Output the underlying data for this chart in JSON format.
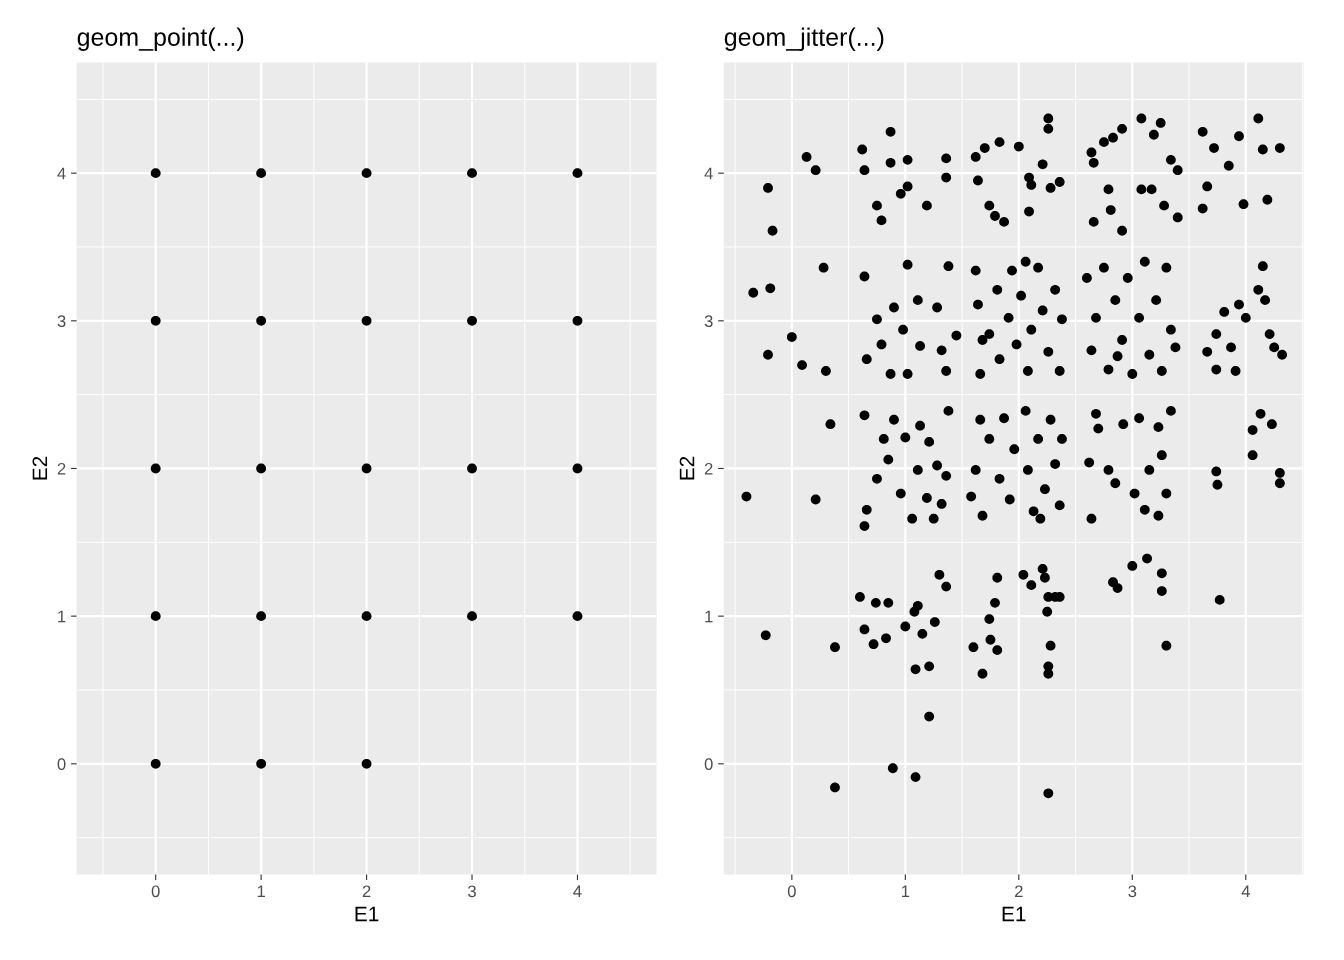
{
  "chart_data": [
    {
      "type": "scatter",
      "title": "geom_point(...)",
      "xlabel": "E1",
      "ylabel": "E2",
      "xlim": [
        -0.75,
        4.75
      ],
      "ylim": [
        -0.75,
        4.75
      ],
      "xticks": [
        0,
        1,
        2,
        3,
        4
      ],
      "yticks": [
        0,
        1,
        2,
        3,
        4
      ],
      "grid": true,
      "marker": "circle",
      "series": [
        {
          "color": "#000000",
          "x": [
            0,
            1,
            2,
            0,
            1,
            2,
            3,
            4,
            0,
            1,
            2,
            3,
            4,
            0,
            1,
            2,
            3,
            4,
            0,
            1,
            2,
            3,
            4
          ],
          "values": [
            0,
            0,
            0,
            1,
            1,
            1,
            1,
            1,
            2,
            2,
            2,
            2,
            2,
            3,
            3,
            3,
            3,
            3,
            4,
            4,
            4,
            4,
            4
          ]
        }
      ]
    },
    {
      "type": "scatter",
      "title": "geom_jitter(...)",
      "xlabel": "E1",
      "ylabel": "E2",
      "xlim": [
        -0.6,
        4.51
      ],
      "ylim": [
        -0.75,
        4.75
      ],
      "xticks": [
        0,
        1,
        2,
        3,
        4
      ],
      "yticks": [
        0,
        1,
        2,
        3,
        4
      ],
      "grid": true,
      "marker": "circle",
      "series": [
        {
          "color": "#000000",
          "x": [
            -0.17,
            -0.21,
            0.13,
            0.21,
            0.62,
            0.64,
            0.87,
            0.87,
            1.02,
            0.75,
            0.79,
            0.96,
            1.02,
            1.19,
            1.36,
            1.36,
            1.62,
            1.64,
            1.7,
            1.83,
            1.74,
            1.79,
            1.87,
            2.0,
            2.09,
            2.09,
            2.11,
            2.21,
            2.26,
            2.26,
            2.28,
            2.36,
            2.66,
            2.64,
            2.66,
            2.75,
            2.79,
            2.81,
            2.83,
            2.91,
            2.91,
            3.08,
            3.08,
            3.17,
            3.19,
            3.25,
            3.28,
            3.34,
            3.4,
            3.4,
            3.62,
            3.66,
            3.62,
            3.72,
            3.85,
            3.94,
            3.98,
            4.11,
            4.15,
            4.19,
            4.3,
            -0.34,
            -0.19,
            -0.21,
            0,
            0.09,
            0.28,
            0.3,
            0.64,
            0.66,
            0.75,
            0.79,
            0.9,
            0.87,
            0.98,
            1.02,
            1.02,
            1.11,
            1.13,
            1.28,
            1.32,
            1.36,
            1.38,
            1.45,
            1.62,
            1.64,
            1.66,
            1.74,
            1.81,
            1.83,
            1.91,
            1.94,
            1.98,
            2.02,
            2.08,
            2.11,
            2.17,
            2.21,
            2.26,
            2.32,
            2.36,
            2.38,
            1.68,
            2.06,
            2.6,
            2.64,
            2.68,
            2.75,
            2.79,
            2.85,
            2.91,
            2.96,
            3.0,
            3.06,
            3.11,
            3.15,
            3.21,
            3.26,
            3.3,
            3.34,
            3.38,
            2.87,
            3.66,
            3.74,
            3.81,
            3.87,
            3.91,
            3.94,
            4.0,
            4.11,
            4.15,
            4.17,
            4.21,
            4.25,
            4.32,
            3.74,
            -0.4,
            0.21,
            0.34,
            0.64,
            0.66,
            0.64,
            0.75,
            0.81,
            0.85,
            0.9,
            0.96,
            1.0,
            1.06,
            1.11,
            1.13,
            1.19,
            1.21,
            1.25,
            1.28,
            1.32,
            1.38,
            1.36,
            1.58,
            1.62,
            1.66,
            1.68,
            1.74,
            1.83,
            1.87,
            1.92,
            1.96,
            2.06,
            2.08,
            2.13,
            2.17,
            2.23,
            2.28,
            2.32,
            2.36,
            2.38,
            2.19,
            2.62,
            2.64,
            2.68,
            2.7,
            2.79,
            2.85,
            2.92,
            3.02,
            3.06,
            3.11,
            3.15,
            3.23,
            3.26,
            3.3,
            3.34,
            3.23,
            3.74,
            3.75,
            4.06,
            4.06,
            4.13,
            4.23,
            4.3,
            4.3,
            -0.23,
            0.38,
            0.6,
            0.64,
            0.74,
            0.72,
            0.83,
            0.85,
            1.0,
            1.08,
            1.11,
            1.09,
            1.15,
            1.21,
            1.26,
            1.3,
            1.36,
            1.21,
            1.6,
            1.68,
            1.74,
            1.75,
            1.79,
            1.81,
            1.81,
            2.04,
            2.11,
            2.21,
            2.23,
            2.25,
            2.26,
            2.26,
            2.26,
            2.28,
            2.32,
            2.36,
            2.83,
            2.87,
            3.0,
            3.13,
            3.26,
            3.26,
            3.3,
            3.77,
            0.38,
            0.89,
            1.09,
            2.26
          ],
          "values": [
            3.61,
            3.9,
            4.11,
            4.02,
            4.16,
            4.02,
            4.28,
            4.07,
            4.09,
            3.78,
            3.68,
            3.86,
            3.91,
            3.78,
            4.1,
            3.97,
            4.11,
            3.95,
            4.17,
            4.21,
            3.78,
            3.71,
            3.67,
            4.18,
            3.97,
            3.74,
            3.92,
            4.06,
            4.37,
            4.3,
            3.9,
            3.94,
            4.07,
            4.14,
            3.67,
            4.21,
            3.89,
            3.75,
            4.24,
            4.3,
            3.61,
            4.37,
            3.89,
            3.89,
            4.26,
            4.34,
            3.78,
            4.09,
            4.02,
            3.7,
            4.28,
            3.91,
            3.76,
            4.17,
            4.05,
            4.25,
            3.79,
            4.37,
            4.16,
            3.82,
            4.17,
            3.19,
            3.22,
            2.77,
            2.89,
            2.7,
            3.36,
            2.66,
            3.3,
            2.74,
            3.01,
            2.84,
            3.09,
            2.64,
            2.94,
            3.38,
            2.64,
            3.14,
            2.83,
            3.09,
            2.8,
            2.66,
            3.37,
            2.9,
            3.34,
            3.11,
            2.64,
            2.91,
            3.21,
            2.74,
            3.02,
            3.34,
            2.84,
            3.17,
            2.66,
            2.94,
            3.36,
            3.07,
            2.79,
            3.21,
            2.66,
            3.01,
            2.87,
            3.4,
            3.29,
            2.8,
            3.02,
            3.36,
            2.67,
            3.14,
            2.87,
            3.29,
            2.64,
            3.02,
            3.4,
            2.77,
            3.14,
            2.66,
            3.36,
            2.94,
            2.82,
            2.76,
            2.79,
            2.91,
            3.06,
            2.82,
            2.66,
            3.11,
            3.02,
            3.21,
            3.37,
            3.14,
            2.91,
            2.82,
            2.77,
            2.67,
            1.81,
            1.79,
            2.3,
            2.36,
            1.72,
            1.61,
            1.93,
            2.2,
            2.06,
            2.33,
            1.83,
            2.21,
            1.66,
            1.99,
            2.29,
            1.8,
            2.18,
            1.66,
            2.02,
            1.76,
            2.39,
            1.95,
            1.81,
            1.99,
            2.33,
            1.68,
            2.2,
            1.93,
            2.34,
            1.79,
            2.13,
            2.39,
            1.99,
            1.71,
            2.2,
            1.86,
            2.33,
            2.03,
            1.75,
            2.2,
            1.66,
            2.04,
            1.66,
            2.37,
            2.27,
            1.99,
            1.9,
            2.3,
            1.83,
            2.34,
            1.72,
            1.99,
            2.28,
            2.09,
            1.83,
            2.39,
            1.68,
            1.98,
            1.89,
            2.26,
            2.09,
            2.37,
            2.3,
            1.97,
            1.9,
            0.87,
            0.79,
            1.13,
            0.91,
            1.09,
            0.81,
            0.85,
            1.09,
            0.93,
            1.03,
            1.07,
            0.64,
            0.88,
            0.66,
            0.96,
            1.28,
            1.2,
            0.32,
            0.79,
            0.61,
            0.98,
            0.84,
            1.09,
            0.77,
            1.26,
            1.28,
            1.21,
            1.32,
            1.26,
            1.03,
            1.13,
            0.66,
            0.61,
            0.8,
            1.13,
            1.13,
            1.23,
            1.19,
            1.34,
            1.39,
            1.29,
            1.17,
            0.8,
            1.11,
            -0.16,
            -0.03,
            -0.09,
            -0.2
          ]
        }
      ]
    }
  ]
}
